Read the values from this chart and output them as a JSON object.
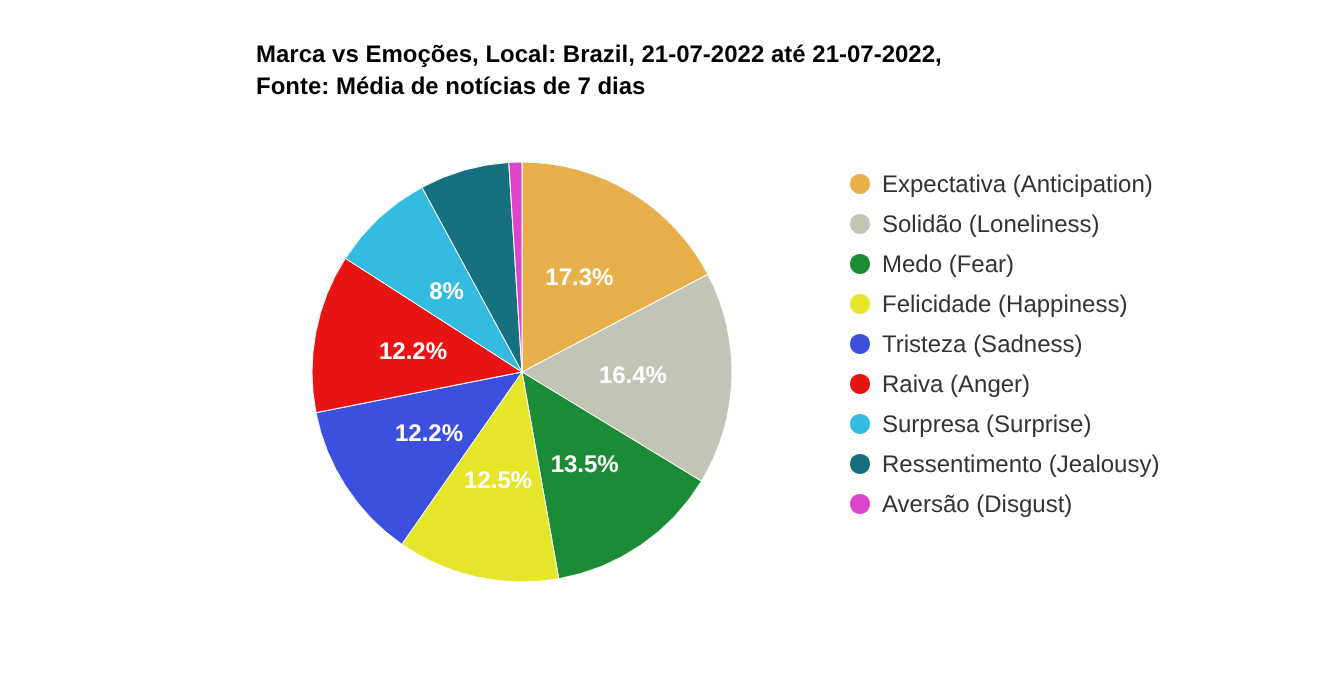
{
  "chart_data": {
    "type": "pie",
    "title": "Marca vs Emoções, Local: Brazil, 21-07-2022 até 21-07-2022,",
    "subtitle": "Fonte: Média de notícias de 7 dias",
    "categories": [
      "Expectativa (Anticipation)",
      "Solidão (Loneliness)",
      "Medo (Fear)",
      "Felicidade (Happiness)",
      "Tristeza (Sadness)",
      "Raiva (Anger)",
      "Surpresa (Surprise)",
      "Ressentimento (Jealousy)",
      "Aversão (Disgust)"
    ],
    "values": [
      17.3,
      16.4,
      13.5,
      12.5,
      12.2,
      12.2,
      8,
      6.9,
      1.0
    ],
    "value_labels": [
      "17.3%",
      "16.4%",
      "13.5%",
      "12.5%",
      "12.2%",
      "12.2%",
      "8%",
      null,
      null
    ],
    "colors": [
      "#e8b04a",
      "#c2c5b5",
      "#1b8c35",
      "#e5e52a",
      "#3c50e0",
      "#e81414",
      "#33bbe0",
      "#167080",
      "#dd44cc"
    ],
    "legend": "right"
  }
}
